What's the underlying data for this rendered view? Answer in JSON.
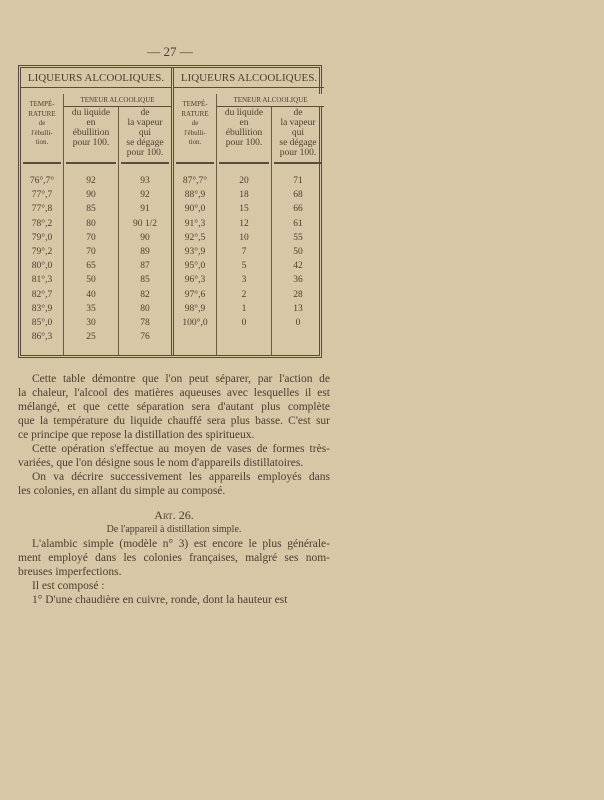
{
  "page_number": "— 27 —",
  "table": {
    "halves": [
      {
        "title": "LIQUEURS ALCOOLIQUES.",
        "col_temp": [
          "TEMPÉ-",
          "RATURE",
          "de",
          "l'ébulli-",
          "tion."
        ],
        "teneur": "TENEUR ALCOOLIQUE",
        "col_liquide": [
          "du liquide",
          "en",
          "ébullition",
          "pour 100."
        ],
        "col_vapeur": [
          "de",
          "la vapeur",
          "qui",
          "se dégage",
          "pour 100."
        ],
        "rows": [
          [
            "76°,7°",
            "92",
            "93"
          ],
          [
            "77°,7",
            "90",
            "92"
          ],
          [
            "77°,8",
            "85",
            "91"
          ],
          [
            "78°,2",
            "80",
            "90 1/2"
          ],
          [
            "79°,0",
            "70",
            "90"
          ],
          [
            "79°,2",
            "70",
            "89"
          ],
          [
            "80°,0",
            "65",
            "87"
          ],
          [
            "81°,3",
            "50",
            "85"
          ],
          [
            "82°,7",
            "40",
            "82"
          ],
          [
            "83°,9",
            "35",
            "80"
          ],
          [
            "85°,0",
            "30",
            "78"
          ],
          [
            "86°,3",
            "25",
            "76"
          ]
        ]
      },
      {
        "title": "LIQUEURS ALCOOLIQUES.",
        "col_temp": [
          "TEMPÉ-",
          "RATURE",
          "de",
          "l'ébulli-",
          "tion."
        ],
        "teneur": "TENEUR ALCOOLIQUE",
        "col_liquide": [
          "du liquide",
          "en",
          "ébullition",
          "pour 100."
        ],
        "col_vapeur": [
          "de",
          "la vapeur",
          "qui",
          "se dégage",
          "pour 100."
        ],
        "rows": [
          [
            "87°,7°",
            "20",
            "71"
          ],
          [
            "88°,9",
            "18",
            "68"
          ],
          [
            "90°,0",
            "15",
            "66"
          ],
          [
            "91°,3",
            "12",
            "61"
          ],
          [
            "92°,5",
            "10",
            "55"
          ],
          [
            "93°,9",
            "7",
            "50"
          ],
          [
            "95°,0",
            "5",
            "42"
          ],
          [
            "96°,3",
            "3",
            "36"
          ],
          [
            "97°,6",
            "2",
            "28"
          ],
          [
            "98°,9",
            "1",
            "13"
          ],
          [
            "100°,0",
            "0",
            "0"
          ]
        ]
      }
    ]
  },
  "paragraphs": [
    [
      "Cette table démontre que l'on peut séparer, par l'action de",
      "la chaleur, l'alcool des matières aqueuses avec lesquelles il est",
      "mélangé, et que cette séparation sera d'autant plus complète",
      "que la température du liquide chauffé sera plus basse. C'est sur",
      "ce principe que repose la distillation des spiritueux."
    ],
    [
      "Cette opération s'effectue au moyen de vases de formes très-",
      "variées, que l'on désigne sous le nom d'appareils distillatoires."
    ],
    [
      "On va décrire successivement les appareils employés dans",
      "les colonies, en allant du simple au composé."
    ]
  ],
  "article": {
    "heading": "Art. 26.",
    "subheading": "De l'appareil à distillation simple.",
    "paragraphs": [
      [
        "L'alambic simple (modèle n° 3) est encore le plus générale-",
        "ment employé dans les colonies françaises, malgré ses nom-",
        "breuses imperfections."
      ],
      [
        "Il est composé :"
      ],
      [
        "1° D'une chaudière en cuivre, ronde, dont la hauteur est"
      ]
    ]
  }
}
